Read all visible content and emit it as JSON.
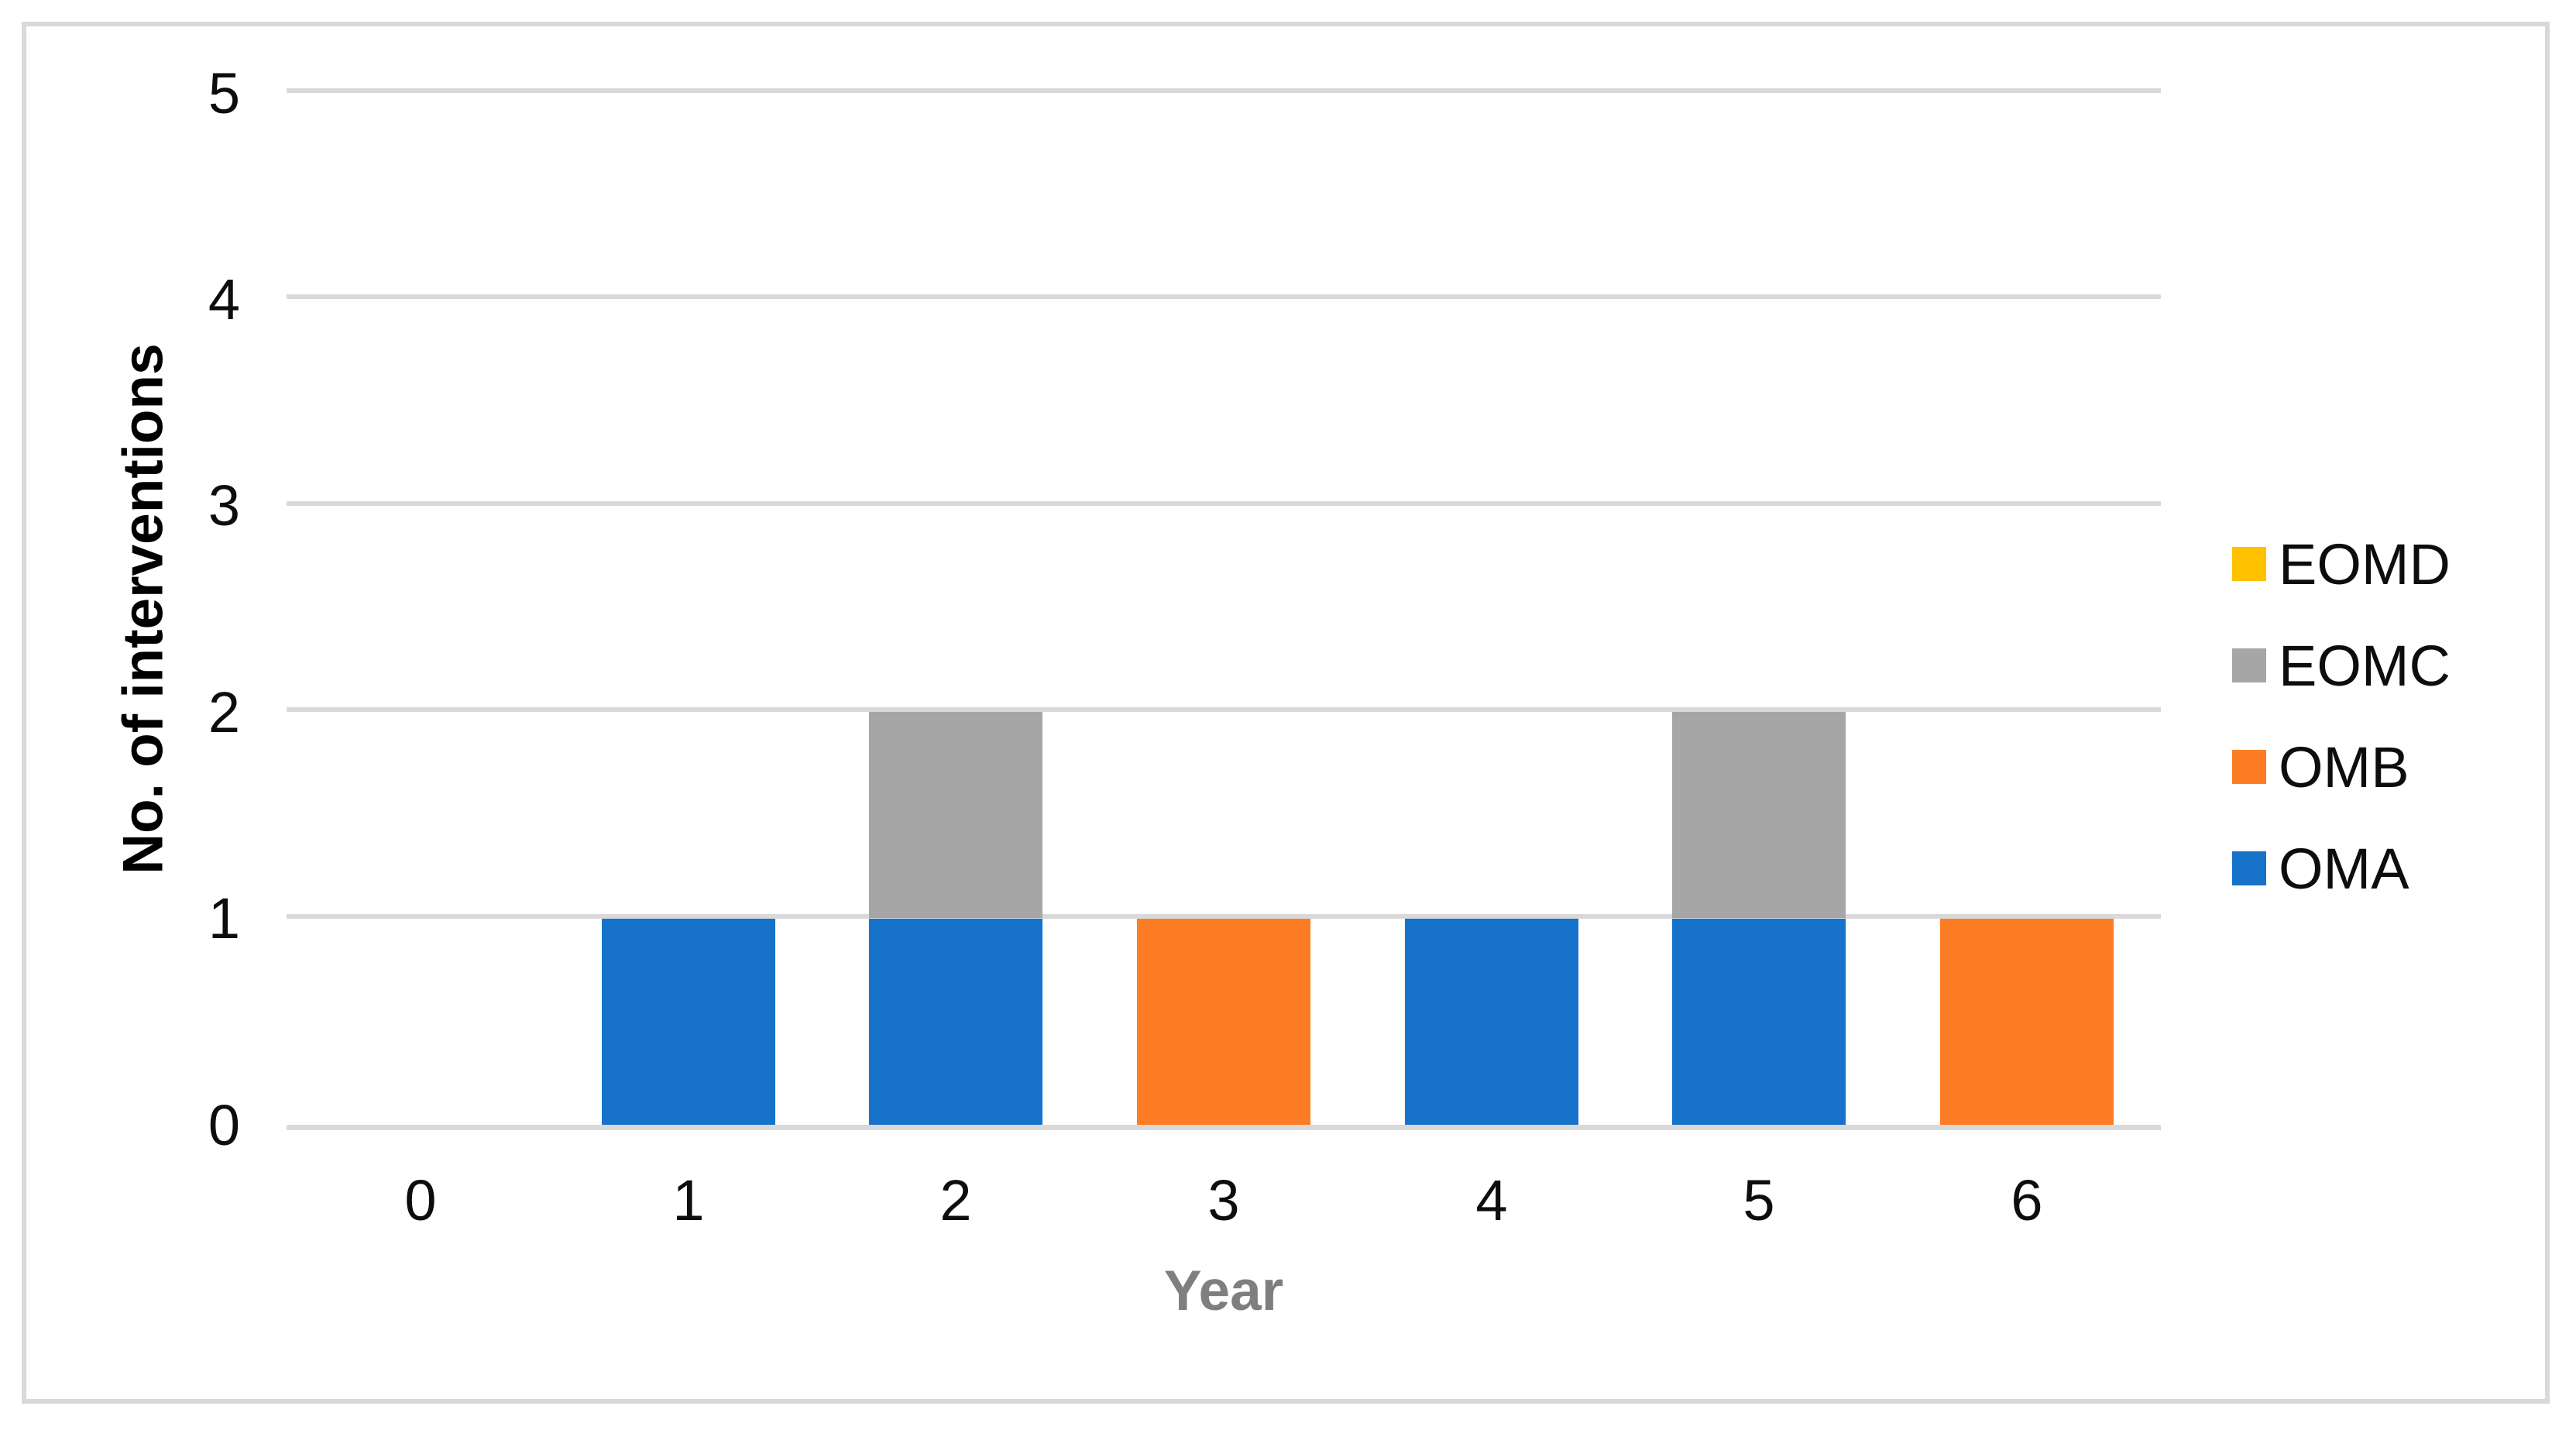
{
  "chart_data": {
    "type": "bar",
    "stacked": true,
    "title": "",
    "xlabel": "Year",
    "ylabel": "No. of interventions",
    "categories": [
      "0",
      "1",
      "2",
      "3",
      "4",
      "5",
      "6"
    ],
    "series": [
      {
        "name": "OMA",
        "color": "#1772C9",
        "values": [
          0,
          1,
          1,
          0,
          1,
          1,
          0
        ]
      },
      {
        "name": "OMB",
        "color": "#FC7D23",
        "values": [
          0,
          0,
          0,
          1,
          0,
          0,
          1
        ]
      },
      {
        "name": "EOMC",
        "color": "#A6A6A6",
        "values": [
          0,
          0,
          1,
          0,
          0,
          1,
          0
        ]
      },
      {
        "name": "EOMD",
        "color": "#FFC000",
        "values": [
          0,
          0,
          0,
          0,
          0,
          0,
          0
        ]
      }
    ],
    "stack_order_bottom_to_top": [
      "OMA",
      "OMB",
      "EOMC",
      "EOMD"
    ],
    "legend_order_top_to_bottom": [
      "EOMD",
      "EOMC",
      "OMB",
      "OMA"
    ],
    "legend_position": "right",
    "y_ticks": [
      0,
      1,
      2,
      3,
      4,
      5
    ],
    "ylim": [
      0,
      5
    ],
    "grid": true
  },
  "colors": {
    "background": "#FFFFFF",
    "frame_border": "#D9D9D9",
    "gridline": "#D9D9D9",
    "axis_line": "#D9D9D9",
    "tick_text": "#0D0D0D",
    "legend_text": "#0D0D0D",
    "x_title": "#7F7F7F",
    "y_title": "#000000"
  }
}
